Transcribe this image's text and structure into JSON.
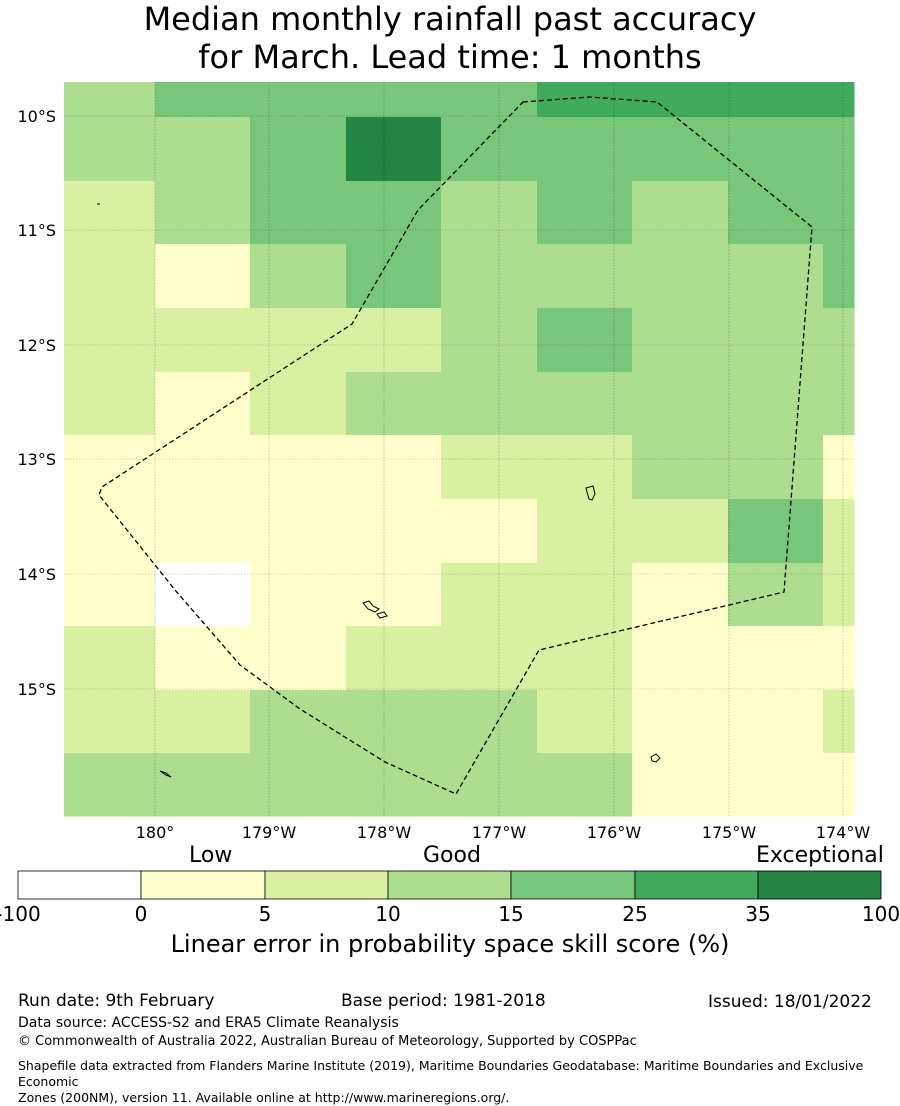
{
  "title_line1": "Median monthly rainfall past accuracy",
  "title_line2": "for March. Lead time: 1 months",
  "chart_data": {
    "type": "heatmap",
    "x_ticks": [
      "180°",
      "179°W",
      "178°W",
      "177°W",
      "176°W",
      "175°W",
      "174°W"
    ],
    "y_ticks": [
      "10°S",
      "11°S",
      "12°S",
      "13°S",
      "14°S",
      "15°S"
    ],
    "grid": true,
    "categories": [
      "-100 to 0",
      "0 to 5",
      "5 to 10",
      "10 to 15",
      "15 to 25",
      "25 to 35",
      "35 to 100"
    ],
    "category_colors": [
      "#ffffff",
      "#ffffcc",
      "#d9f0a3",
      "#addd8e",
      "#78c679",
      "#41ab5d",
      "#238443"
    ],
    "grid_cells": [
      [
        3,
        4,
        4,
        4,
        4,
        5,
        5,
        5,
        5
      ],
      [
        3,
        3,
        4,
        6,
        4,
        4,
        4,
        4,
        4
      ],
      [
        2,
        3,
        4,
        4,
        3,
        4,
        3,
        4,
        4
      ],
      [
        2,
        1,
        3,
        4,
        3,
        3,
        3,
        3,
        4
      ],
      [
        2,
        2,
        2,
        2,
        3,
        4,
        3,
        3,
        3
      ],
      [
        2,
        1,
        2,
        3,
        3,
        3,
        3,
        3,
        3
      ],
      [
        1,
        1,
        1,
        1,
        2,
        2,
        3,
        3,
        1
      ],
      [
        1,
        1,
        1,
        1,
        1,
        2,
        2,
        4,
        2
      ],
      [
        1,
        0,
        1,
        1,
        2,
        2,
        1,
        3,
        2
      ],
      [
        2,
        1,
        1,
        2,
        2,
        2,
        1,
        1,
        1
      ],
      [
        2,
        2,
        3,
        3,
        3,
        2,
        1,
        1,
        2
      ],
      [
        3,
        3,
        3,
        3,
        3,
        3,
        1,
        1,
        1
      ]
    ],
    "colorbar": {
      "labels": [
        "Low",
        "Good",
        "Exceptional"
      ],
      "ticks": [
        "-100",
        "0",
        "5",
        "10",
        "15",
        "25",
        "35",
        "100"
      ],
      "title": "Linear error in probability space skill score (%)"
    }
  },
  "footer": {
    "run_date": "Run date: 9th February",
    "base_period": "Base period: 1981-2018",
    "issued": "Issued: 18/01/2022",
    "data_source": "Data source: ACCESS-S2 and ERA5 Climate Reanalysis",
    "copyright": "© Commonwealth of Australia 2022, Australian Bureau of Meteorology, Supported by COSPPac",
    "shapefile_line1": "Shapefile data extracted from Flanders Marine Institute (2019), Maritime Boundaries Geodatabase: Maritime Boundaries and Exclusive Economic",
    "shapefile_line2": "Zones (200NM), version 11. Available online at http://www.marineregions.org/."
  }
}
